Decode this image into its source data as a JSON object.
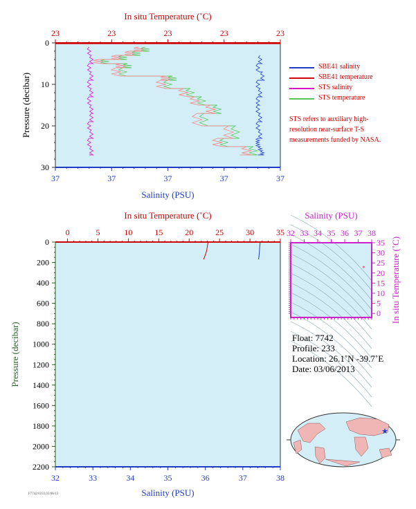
{
  "chart_data": [
    {
      "type": "line",
      "top_axis_label": "In situ Temperature (˚C)",
      "bottom_axis_label": "Salinity (PSU)",
      "ylabel": "Pressure (decibar)",
      "top_tick_labels": [
        "23",
        "23",
        "23",
        "23",
        "23"
      ],
      "bottom_tick_labels": [
        "37",
        "37",
        "37",
        "37",
        "37"
      ],
      "y_tick_labels": [
        "0",
        "10",
        "20",
        "30"
      ],
      "ylim": [
        30,
        0
      ],
      "background": "#d4eef7",
      "series": [
        {
          "name": "SBE41 salinity",
          "color": "#1f3cc7",
          "axis": "salinity",
          "x": [
            0.91,
            0.9,
            0.92,
            0.9,
            0.91,
            0.9,
            0.9,
            0.91,
            0.9,
            0.91,
            0.9,
            0.9,
            0.91,
            0.92,
            0.9
          ],
          "y": [
            3,
            5,
            7,
            9,
            11,
            13,
            15,
            17,
            19,
            21,
            23,
            24,
            25,
            26,
            27
          ]
        },
        {
          "name": "SBE41 temperature",
          "color": "#d10000",
          "axis": "temperature",
          "x": [
            0.0,
            1.0
          ],
          "y": [
            0.1,
            0.1
          ]
        },
        {
          "name": "STS salinity",
          "color": "#d312c4",
          "axis": "salinity",
          "x": [
            0.15,
            0.16,
            0.15,
            0.16,
            0.15,
            0.16,
            0.15,
            0.16,
            0.16,
            0.15,
            0.16,
            0.15,
            0.16,
            0.15
          ],
          "y": [
            1,
            3,
            5,
            7,
            9,
            11,
            13,
            15,
            17,
            19,
            21,
            23,
            25,
            27
          ]
        },
        {
          "name": "STS temperature",
          "color": "#55c455",
          "axis": "temperature",
          "x": [
            0.4,
            0.36,
            0.3,
            0.22,
            0.32,
            0.3,
            0.52,
            0.5,
            0.6,
            0.65,
            0.72,
            0.66,
            0.8,
            0.75,
            0.88,
            0.85
          ],
          "y": [
            1,
            2,
            3,
            4,
            5,
            6,
            8,
            9,
            11,
            13,
            15,
            17,
            20,
            23,
            25,
            27
          ]
        }
      ]
    },
    {
      "type": "line",
      "top_axis_label": "In situ Temperature (˚C)",
      "bottom_axis_label": "Salinity (PSU)",
      "ylabel": "Pressure (decibar)",
      "temperature_ticks": [
        0,
        5,
        10,
        15,
        20,
        25,
        30,
        35
      ],
      "salinity_ticks": [
        32,
        33,
        34,
        35,
        36,
        37,
        38
      ],
      "pressure_ticks": [
        0,
        200,
        400,
        600,
        800,
        1000,
        1200,
        1400,
        1600,
        1800,
        2000,
        2200
      ],
      "xlim_temperature": [
        -2,
        35
      ],
      "xlim_salinity": [
        32,
        38
      ],
      "ylim": [
        2200,
        0
      ],
      "background": "#d4eef7",
      "series": [
        {
          "name": "temperature",
          "color": "#d10000",
          "axis": "temperature",
          "x": [
            23.1,
            23.0,
            22.9,
            22.7,
            22.5,
            22.4
          ],
          "y": [
            0,
            40,
            80,
            120,
            150,
            170
          ]
        },
        {
          "name": "salinity",
          "color": "#1f3cc7",
          "axis": "salinity",
          "x": [
            37.46,
            37.45,
            37.44,
            37.43,
            37.42
          ],
          "y": [
            0,
            50,
            100,
            140,
            170
          ]
        }
      ]
    },
    {
      "type": "scatter",
      "top_axis_label": "Salinity (PSU)",
      "right_axis_label": "In situ Temperature (˚C)",
      "salinity_ticks": [
        32,
        33,
        34,
        35,
        36,
        37,
        38
      ],
      "temperature_ticks": [
        0,
        5,
        10,
        15,
        20,
        25,
        30,
        35
      ],
      "xlim": [
        32,
        38
      ],
      "ylim": [
        -2,
        35
      ],
      "points": [
        {
          "salinity": 37.4,
          "temperature": 23.0
        }
      ]
    }
  ],
  "info": {
    "float": "Float:  7742",
    "profile": "Profile:  233",
    "location": "Location:  26.1˚N  -39.7˚E",
    "date": "Date:  03/06/2013"
  },
  "legend": {
    "items": [
      {
        "label": "SBE41 salinity",
        "color": "#1f3cc7"
      },
      {
        "label": "SBE41 temperature",
        "color": "#d10000"
      },
      {
        "label": "STS salinity",
        "color": "#d312c4"
      },
      {
        "label": "STS temperature",
        "color": "#55c455"
      }
    ],
    "note": "STS refers to auxiliary high-resolution near-surface T-S measurements funded by NASA."
  },
  "map": {
    "marker": "★",
    "marker_color": "#1f3cc7",
    "land_color": "#f0b6b6",
    "ocean_color": "#d4eef7"
  },
  "footer": {
    "stamp": "F7742/0233,03/06/13"
  }
}
